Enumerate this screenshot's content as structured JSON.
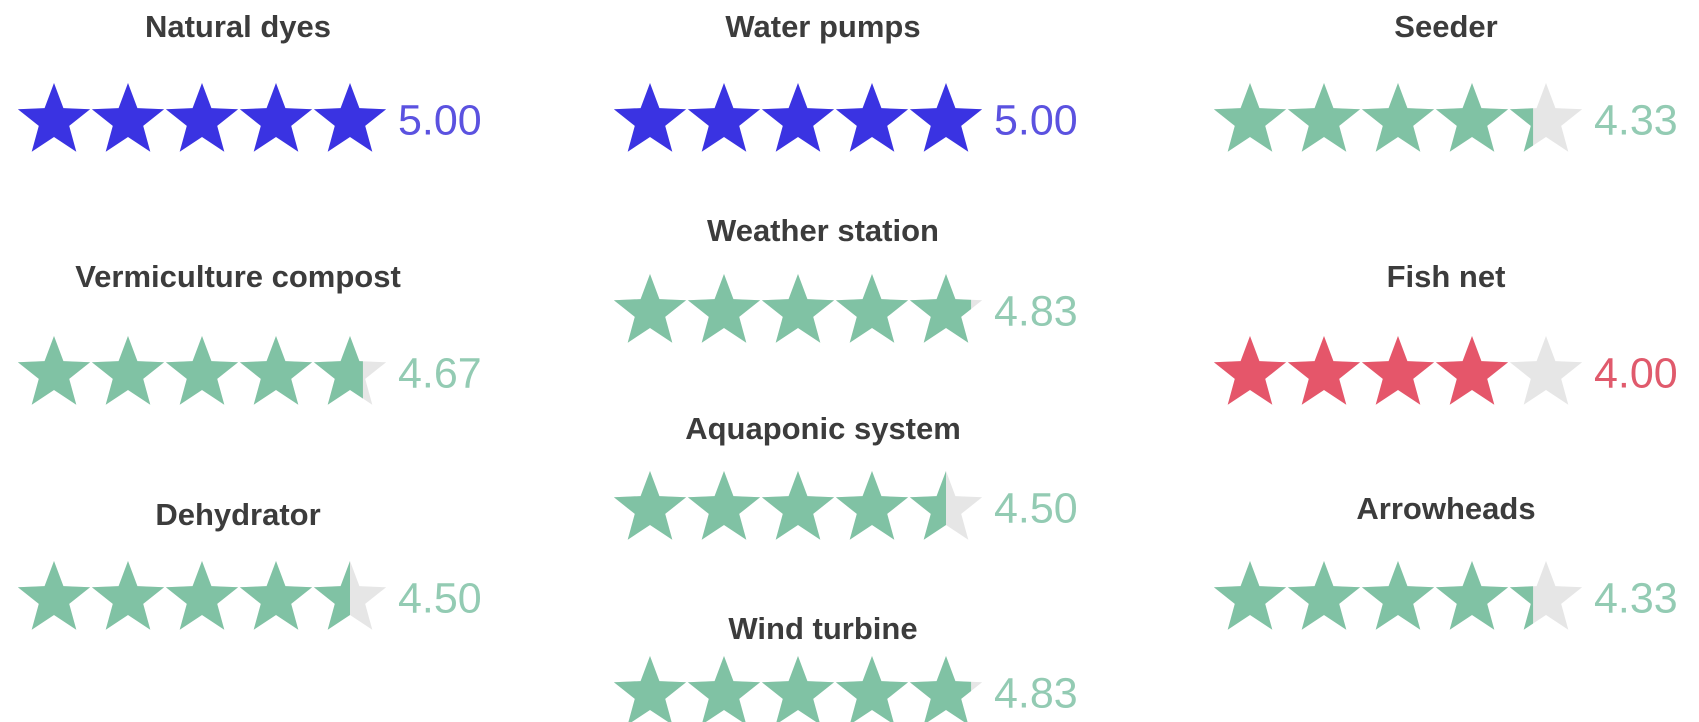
{
  "columns": [
    {
      "items": [
        {
          "name": "Natural dyes",
          "rating": 5,
          "rating_label": "5.00",
          "color": "#3a33e2",
          "label_color": "#5b52e0"
        },
        {
          "name": "Vermiculture compost",
          "rating": 4.67,
          "rating_label": "4.67",
          "color": "#80c2a4",
          "label_color": "#93cbb3"
        },
        {
          "name": "Dehydrator",
          "rating": 4.5,
          "rating_label": "4.50",
          "color": "#80c2a4",
          "label_color": "#93cbb3"
        }
      ]
    },
    {
      "items": [
        {
          "name": "Water pumps",
          "rating": 5,
          "rating_label": "5.00",
          "color": "#3a33e2",
          "label_color": "#5b52e0"
        },
        {
          "name": "Weather station",
          "rating": 4.83,
          "rating_label": "4.83",
          "color": "#80c2a4",
          "label_color": "#93cbb3"
        },
        {
          "name": "Aquaponic system",
          "rating": 4.5,
          "rating_label": "4.50",
          "color": "#80c2a4",
          "label_color": "#93cbb3"
        },
        {
          "name": "Wind turbine",
          "rating": 4.83,
          "rating_label": "4.83",
          "color": "#80c2a4",
          "label_color": "#93cbb3"
        }
      ]
    },
    {
      "items": [
        {
          "name": "Seeder",
          "rating": 4.33,
          "rating_label": "4.33",
          "color": "#80c2a4",
          "label_color": "#93cbb3"
        },
        {
          "name": "Fish net",
          "rating": 4,
          "rating_label": "4.00",
          "color": "#e5566a",
          "label_color": "#e05a6c"
        },
        {
          "name": "Arrowheads",
          "rating": 4.33,
          "rating_label": "4.33",
          "color": "#80c2a4",
          "label_color": "#93cbb3"
        }
      ]
    }
  ]
}
